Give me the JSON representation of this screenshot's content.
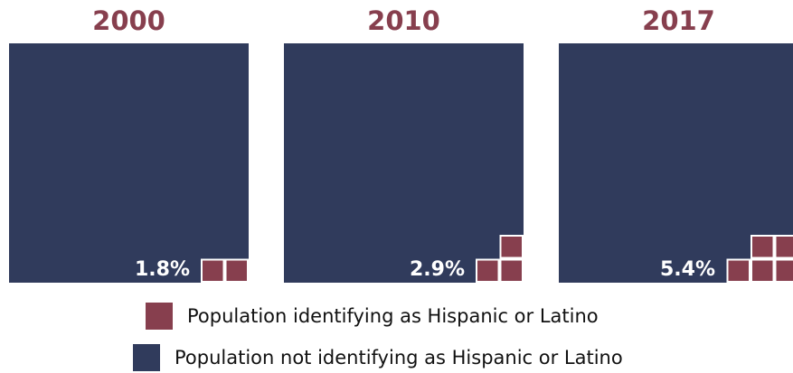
{
  "chart_data": {
    "type": "waffle",
    "grid": "10x10",
    "panels": [
      {
        "year": "2000",
        "hispanic_pct": 1.8,
        "label": "1.8%"
      },
      {
        "year": "2010",
        "hispanic_pct": 2.9,
        "label": "2.9%"
      },
      {
        "year": "2017",
        "hispanic_pct": 5.4,
        "label": "5.4%"
      }
    ],
    "legend": [
      {
        "name": "Population identifying as Hispanic or Latino",
        "color": "#873f4e"
      },
      {
        "name": "Population not identifying as Hispanic or Latino",
        "color": "#303b5c"
      }
    ],
    "colors": {
      "hispanic": "#873f4e",
      "not_hispanic": "#303b5c",
      "title": "#873f4e",
      "cell_border": "#ffffff"
    }
  }
}
